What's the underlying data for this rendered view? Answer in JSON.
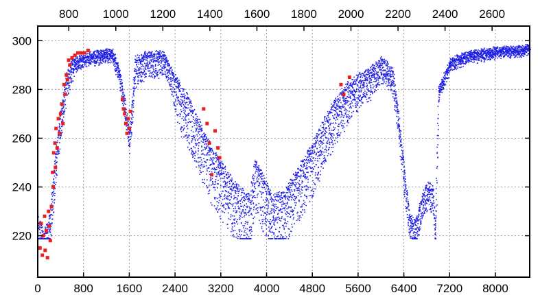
{
  "chart_data": {
    "type": "scatter",
    "title": "",
    "xlabel": "",
    "ylabel": "",
    "grid": true,
    "xlim": [
      0,
      8600
    ],
    "ylim": [
      203,
      306
    ],
    "x2lim": [
      668,
      2760
    ],
    "xticks": [
      0,
      800,
      1600,
      2400,
      3200,
      4000,
      4800,
      5600,
      6400,
      7200,
      8000
    ],
    "xtick_labels": [
      "0",
      "800",
      "1600",
      "2400",
      "3200",
      "4000",
      "4800",
      "5600",
      "6400",
      "7200",
      "8000"
    ],
    "x2ticks": [
      800,
      1000,
      1200,
      1400,
      1600,
      1800,
      2000,
      2200,
      2400,
      2600
    ],
    "x2tick_labels": [
      "800",
      "1000",
      "1200",
      "1400",
      "1600",
      "1800",
      "2000",
      "2200",
      "2400",
      "2600"
    ],
    "yticks": [
      220,
      240,
      260,
      280,
      300
    ],
    "ytick_labels": [
      "220",
      "240",
      "260",
      "280",
      "300"
    ],
    "series": [
      {
        "color": "#1f1fe6",
        "marker": "dot",
        "trend": [
          [
            0,
            228
          ],
          [
            100,
            222
          ],
          [
            200,
            228
          ],
          [
            300,
            252
          ],
          [
            400,
            272
          ],
          [
            500,
            287
          ],
          [
            600,
            292
          ],
          [
            800,
            294
          ],
          [
            1000,
            295
          ],
          [
            1200,
            296
          ],
          [
            1300,
            296
          ],
          [
            1400,
            290
          ],
          [
            1500,
            278
          ],
          [
            1600,
            262
          ],
          [
            1700,
            293
          ],
          [
            1900,
            295
          ],
          [
            2200,
            295
          ],
          [
            2400,
            285
          ],
          [
            2600,
            278
          ],
          [
            2800,
            268
          ],
          [
            3000,
            258
          ],
          [
            3200,
            250
          ],
          [
            3400,
            243
          ],
          [
            3600,
            238
          ],
          [
            3700,
            236
          ],
          [
            3800,
            252
          ],
          [
            3900,
            246
          ],
          [
            4100,
            236
          ],
          [
            4300,
            238
          ],
          [
            4600,
            250
          ],
          [
            4800,
            258
          ],
          [
            5000,
            268
          ],
          [
            5200,
            276
          ],
          [
            5400,
            282
          ],
          [
            5600,
            286
          ],
          [
            5800,
            288
          ],
          [
            6000,
            293
          ],
          [
            6200,
            288
          ],
          [
            6300,
            270
          ],
          [
            6400,
            248
          ],
          [
            6500,
            228
          ],
          [
            6600,
            226
          ],
          [
            6700,
            236
          ],
          [
            6800,
            242
          ],
          [
            6900,
            240
          ],
          [
            6950,
            225
          ],
          [
            7000,
            280
          ],
          [
            7200,
            292
          ],
          [
            7500,
            295
          ],
          [
            7800,
            296
          ],
          [
            8100,
            297
          ],
          [
            8400,
            297
          ],
          [
            8600,
            298
          ]
        ],
        "spread": [
          [
            0,
            12
          ],
          [
            500,
            8
          ],
          [
            700,
            3
          ],
          [
            1300,
            3
          ],
          [
            1600,
            6
          ],
          [
            1700,
            8
          ],
          [
            2300,
            6
          ],
          [
            2500,
            14
          ],
          [
            3000,
            17
          ],
          [
            3700,
            16
          ],
          [
            4000,
            16
          ],
          [
            4800,
            16
          ],
          [
            5600,
            10
          ],
          [
            6100,
            6
          ],
          [
            6400,
            8
          ],
          [
            6700,
            8
          ],
          [
            6950,
            8
          ],
          [
            7000,
            3
          ],
          [
            8600,
            2
          ]
        ]
      },
      {
        "color": "#e82020",
        "marker": "dot",
        "points": [
          [
            40,
            215
          ],
          [
            60,
            225
          ],
          [
            80,
            212
          ],
          [
            100,
            220
          ],
          [
            120,
            228
          ],
          [
            130,
            214
          ],
          [
            150,
            222
          ],
          [
            170,
            211
          ],
          [
            190,
            230
          ],
          [
            200,
            224
          ],
          [
            220,
            218
          ],
          [
            240,
            232
          ],
          [
            260,
            246
          ],
          [
            270,
            240
          ],
          [
            280,
            254
          ],
          [
            300,
            258
          ],
          [
            310,
            248
          ],
          [
            320,
            264
          ],
          [
            340,
            256
          ],
          [
            360,
            268
          ],
          [
            380,
            262
          ],
          [
            400,
            270
          ],
          [
            420,
            274
          ],
          [
            440,
            266
          ],
          [
            460,
            282
          ],
          [
            480,
            278
          ],
          [
            500,
            286
          ],
          [
            520,
            284
          ],
          [
            540,
            292
          ],
          [
            560,
            290
          ],
          [
            600,
            293
          ],
          [
            650,
            294
          ],
          [
            700,
            295
          ],
          [
            760,
            295
          ],
          [
            820,
            295
          ],
          [
            880,
            296
          ],
          [
            1480,
            276
          ],
          [
            1500,
            272
          ],
          [
            1520,
            270
          ],
          [
            1540,
            266
          ],
          [
            1560,
            262
          ],
          [
            1580,
            268
          ],
          [
            1600,
            264
          ],
          [
            1620,
            271
          ],
          [
            2900,
            272
          ],
          [
            2960,
            266
          ],
          [
            3000,
            258
          ],
          [
            3040,
            245
          ],
          [
            3100,
            263
          ],
          [
            3150,
            256
          ],
          [
            3180,
            252
          ],
          [
            5300,
            282
          ],
          [
            5350,
            278
          ],
          [
            5450,
            285
          ]
        ]
      }
    ]
  }
}
